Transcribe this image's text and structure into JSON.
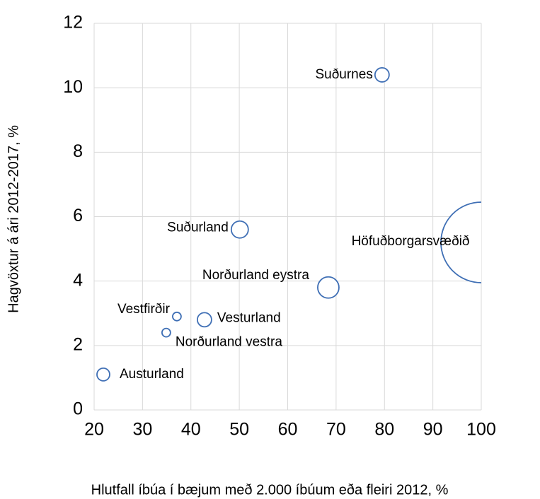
{
  "chart_data": {
    "type": "bubble",
    "x_label": "Hlutfall íbúa í bæjum með 2.000 íbúum eða fleiri 2012, %",
    "y_label": "Hagvöxtur á ári 2012-2017, %",
    "labels": [
      "Suðurnes",
      "Suðurland",
      "Höfuðborgarsvæðið",
      "Norðurland eystra",
      "Vestfirðir",
      "Vesturland",
      "Norðurland vestra",
      "Austurland"
    ],
    "x": [
      79.5,
      50.1,
      100,
      68.4,
      37.1,
      42.8,
      34.9,
      21.9
    ],
    "values": [
      10.4,
      5.6,
      5.2,
      3.8,
      2.9,
      2.8,
      2.4,
      1.1
    ],
    "sizes": [
      100,
      144,
      3249,
      225,
      36,
      100,
      36,
      81
    ],
    "color": "#3f6fb5",
    "xlim": [
      20,
      100
    ],
    "xticks": [
      20,
      30,
      40,
      50,
      60,
      70,
      80,
      90,
      100
    ],
    "ylim": [
      0,
      12
    ],
    "yticks": [
      0,
      2,
      4,
      6,
      8,
      10,
      12
    ],
    "grid": true
  }
}
